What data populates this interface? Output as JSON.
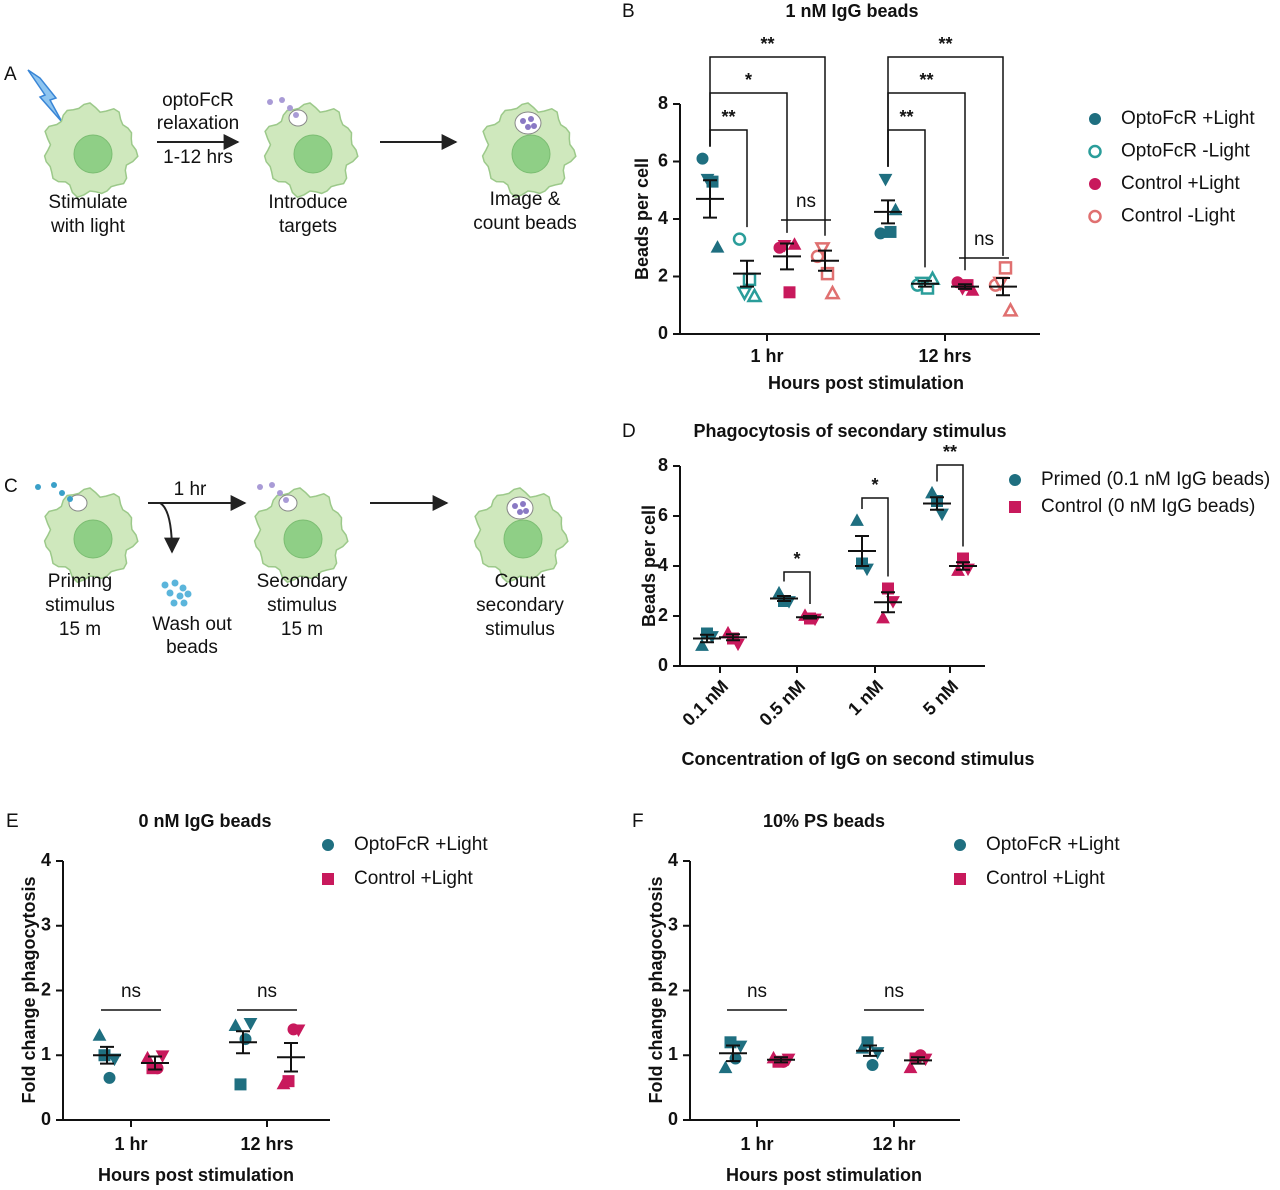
{
  "diagrams": [
    {
      "panel": "A",
      "steps": [
        [
          "Stimulate",
          "with light"
        ],
        [
          "Introduce",
          "targets"
        ],
        [
          "Image &",
          "count beads"
        ]
      ],
      "arrow_labels": [
        [
          "optoFcR",
          "relaxation"
        ],
        [
          "1-12 hrs"
        ]
      ]
    },
    {
      "panel": "C",
      "steps": [
        [
          "Priming",
          "stimulus",
          "15 m"
        ],
        [
          "Secondary",
          "stimulus",
          "15 m"
        ],
        [
          "Count",
          "secondary",
          "stimulus"
        ]
      ],
      "arrow_labels": [
        [
          "1 hr"
        ],
        [
          "Wash out",
          "beads"
        ]
      ]
    }
  ],
  "chart_data": [
    {
      "type": "dot",
      "panel": "B",
      "title": "1 nM IgG beads",
      "y_label": "Beads per cell",
      "x_label": "Hours post stimulation",
      "categories": [
        "1 hr",
        "12 hrs"
      ],
      "ylim": [
        0,
        8
      ],
      "yticks": [
        0,
        2,
        4,
        6,
        8
      ],
      "markers": [
        "circle",
        "triangle-down",
        "square",
        "triangle"
      ],
      "series": [
        {
          "name": "OptoFcR +Light",
          "color": "#1f6f80",
          "filled": true,
          "marker": "circle",
          "values": [
            [
              6.1,
              5.4,
              5.3,
              3.0
            ],
            [
              3.5,
              5.4,
              3.55,
              4.3
            ]
          ],
          "means": [
            4.7,
            4.25
          ],
          "errors": [
            0.65,
            0.4
          ]
        },
        {
          "name": "OptoFcR -Light",
          "color": "#2a9d9a",
          "filled": false,
          "marker": "circle",
          "values": [
            [
              3.3,
              1.45,
              1.9,
              1.3
            ],
            [
              1.7,
              1.8,
              1.6,
              1.9
            ]
          ],
          "means": [
            2.1,
            1.75
          ],
          "errors": [
            0.45,
            0.1
          ]
        },
        {
          "name": "Control +Light",
          "color": "#c8195c",
          "filled": true,
          "marker": "circle",
          "values": [
            [
              3.0,
              3.1,
              1.45,
              3.1
            ],
            [
              1.8,
              1.6,
              1.7,
              1.5
            ]
          ],
          "means": [
            2.7,
            1.65
          ],
          "errors": [
            0.45,
            0.08
          ]
        },
        {
          "name": "Control -Light",
          "color": "#e07070",
          "filled": false,
          "marker": "circle",
          "values": [
            [
              2.7,
              3.0,
              2.1,
              1.4
            ],
            [
              1.7,
              1.8,
              2.3,
              0.8
            ]
          ],
          "means": [
            2.55,
            1.65
          ],
          "errors": [
            0.35,
            0.3
          ]
        }
      ],
      "comparisons": [
        {
          "label": "**",
          "category": 0,
          "pair": [
            0,
            1
          ]
        },
        {
          "label": "*",
          "category": 0,
          "pair": [
            0,
            2
          ]
        },
        {
          "label": "**",
          "category": 0,
          "pair": [
            0,
            3
          ]
        },
        {
          "label": "ns",
          "category": 0,
          "pair": [
            2,
            3
          ]
        },
        {
          "label": "**",
          "category": 1,
          "pair": [
            0,
            1
          ]
        },
        {
          "label": "**",
          "category": 1,
          "pair": [
            0,
            2
          ]
        },
        {
          "label": "**",
          "category": 1,
          "pair": [
            0,
            3
          ]
        },
        {
          "label": "ns",
          "category": 1,
          "pair": [
            2,
            3
          ]
        }
      ]
    },
    {
      "type": "dot",
      "panel": "D",
      "title": "Phagocytosis of secondary stimulus",
      "y_label": "Beads per cell",
      "x_label": "Concentration of IgG on second stimulus",
      "categories": [
        "0.1 nM",
        "0.5 nM",
        "1 nM",
        "5 nM"
      ],
      "ylim": [
        0,
        8
      ],
      "yticks": [
        0,
        2,
        4,
        6,
        8
      ],
      "markers": [
        "triangle",
        "square",
        "triangle-down"
      ],
      "series": [
        {
          "name": "Primed (0.1 nM IgG beads)",
          "color": "#1f6f80",
          "filled": true,
          "marker": "circle",
          "values": [
            [
              0.8,
              1.3,
              1.2
            ],
            [
              2.9,
              2.6,
              2.6
            ],
            [
              5.8,
              4.1,
              3.9
            ],
            [
              6.9,
              6.6,
              6.1
            ]
          ],
          "means": [
            1.1,
            2.7,
            4.6,
            6.5
          ],
          "errors": [
            0.15,
            0.1,
            0.6,
            0.25
          ]
        },
        {
          "name": "Control (0 nM IgG beads)",
          "color": "#c8195c",
          "filled": true,
          "marker": "square",
          "values": [
            [
              1.3,
              1.1,
              0.9
            ],
            [
              2.0,
              1.9,
              1.9
            ],
            [
              1.9,
              3.1,
              2.6
            ],
            [
              3.8,
              4.3,
              3.9
            ]
          ],
          "means": [
            1.15,
            1.95,
            2.55,
            4.0
          ],
          "errors": [
            0.12,
            0.05,
            0.4,
            0.15
          ]
        }
      ],
      "comparisons": [
        {
          "label": "*",
          "category": 1,
          "pair": [
            0,
            1
          ]
        },
        {
          "label": "*",
          "category": 2,
          "pair": [
            0,
            1
          ]
        },
        {
          "label": "**",
          "category": 3,
          "pair": [
            0,
            1
          ]
        }
      ]
    },
    {
      "type": "dot",
      "panel": "E",
      "title": "0 nM IgG beads",
      "y_label": "Fold change phagocytosis",
      "x_label": "Hours post stimulation",
      "categories": [
        "1 hr",
        "12 hrs"
      ],
      "ylim": [
        0,
        4
      ],
      "yticks": [
        0,
        1,
        2,
        3,
        4
      ],
      "markers": [
        "triangle",
        "square",
        "circle",
        "triangle-down"
      ],
      "series": [
        {
          "name": "OptoFcR +Light",
          "color": "#1f6f80",
          "filled": true,
          "marker": "circle",
          "values": [
            [
              1.3,
              1.0,
              0.65,
              0.95
            ],
            [
              1.45,
              0.55,
              1.25,
              1.5
            ]
          ],
          "means": [
            1.0,
            1.2
          ],
          "errors": [
            0.13,
            0.17
          ]
        },
        {
          "name": "Control +Light",
          "color": "#c8195c",
          "filled": true,
          "marker": "square",
          "values": [
            [
              0.95,
              0.8,
              0.8,
              1.0
            ],
            [
              0.55,
              0.6,
              1.4,
              1.4
            ]
          ],
          "means": [
            0.88,
            0.97
          ],
          "errors": [
            0.1,
            0.22
          ]
        }
      ],
      "comparisons": [
        {
          "label": "ns",
          "category": 0,
          "pair": [
            0,
            1
          ]
        },
        {
          "label": "ns",
          "category": 1,
          "pair": [
            0,
            1
          ]
        }
      ]
    },
    {
      "type": "dot",
      "panel": "F",
      "title": "10% PS beads",
      "y_label": "Fold change phagocytosis",
      "x_label": "Hours post stimulation",
      "categories": [
        "1 hr",
        "12 hr"
      ],
      "ylim": [
        0,
        4
      ],
      "yticks": [
        0,
        1,
        2,
        3,
        4
      ],
      "markers": [
        "triangle",
        "square",
        "circle",
        "triangle-down"
      ],
      "series": [
        {
          "name": "OptoFcR +Light",
          "color": "#1f6f80",
          "filled": true,
          "marker": "circle",
          "values": [
            [
              0.8,
              1.2,
              0.95,
              1.15
            ],
            [
              1.1,
              1.2,
              0.85,
              1.05
            ]
          ],
          "means": [
            1.03,
            1.07
          ],
          "errors": [
            0.12,
            0.08
          ]
        },
        {
          "name": "Control +Light",
          "color": "#c8195c",
          "filled": true,
          "marker": "square",
          "values": [
            [
              0.95,
              0.9,
              0.9,
              0.95
            ],
            [
              0.8,
              0.95,
              1.0,
              0.95
            ]
          ],
          "means": [
            0.93,
            0.92
          ],
          "errors": [
            0.04,
            0.05
          ]
        }
      ],
      "comparisons": [
        {
          "label": "ns",
          "category": 0,
          "pair": [
            0,
            1
          ]
        },
        {
          "label": "ns",
          "category": 1,
          "pair": [
            0,
            1
          ]
        }
      ]
    }
  ]
}
